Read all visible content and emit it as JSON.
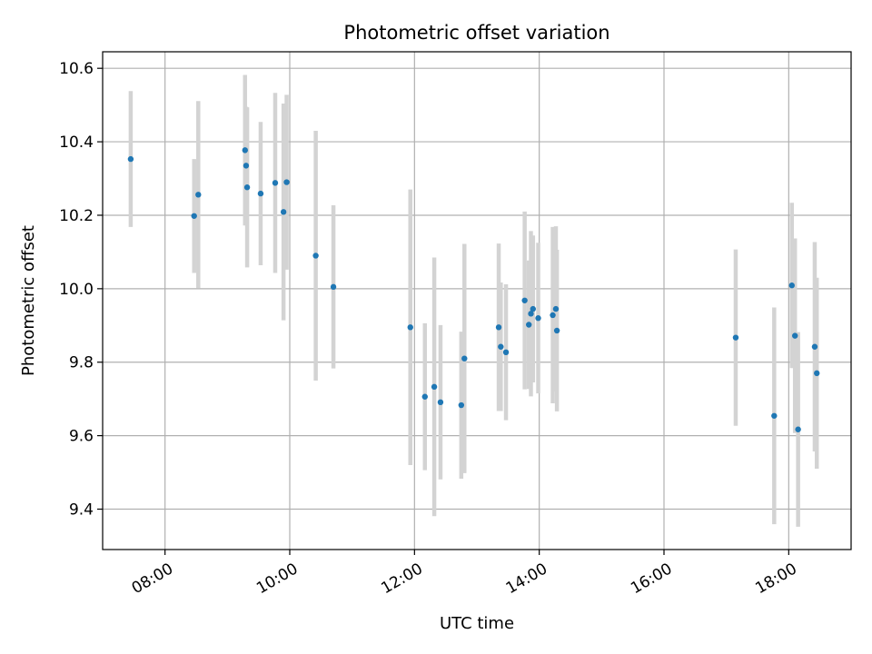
{
  "chart_data": {
    "type": "scatter",
    "title": "Photometric offset variation",
    "xlabel": "UTC time",
    "ylabel": "Photometric offset",
    "x_unit": "hours",
    "xlim": [
      "07:00",
      "19:00"
    ],
    "ylim": [
      9.29,
      10.645
    ],
    "grid": true,
    "legend": "none",
    "xticks": [
      "08:00",
      "10:00",
      "12:00",
      "14:00",
      "16:00",
      "18:00"
    ],
    "yticks": [
      "9.4",
      "9.6",
      "9.8",
      "10.0",
      "10.2",
      "10.4",
      "10.6"
    ],
    "colors": {
      "points": "#1f77b4",
      "error_bars": "#d3d3d3",
      "grid": "#b0b0b0"
    },
    "series": [
      {
        "points": [
          {
            "time": "07:27",
            "y": 10.353,
            "err": 0.185
          },
          {
            "time": "08:28",
            "y": 10.198,
            "err": 0.155
          },
          {
            "time": "08:32",
            "y": 10.256,
            "err": 0.255
          },
          {
            "time": "09:17",
            "y": 10.377,
            "err": 0.205
          },
          {
            "time": "09:18",
            "y": 10.335,
            "err": 0.16
          },
          {
            "time": "09:19",
            "y": 10.276,
            "err": 0.218
          },
          {
            "time": "09:32",
            "y": 10.259,
            "err": 0.195
          },
          {
            "time": "09:46",
            "y": 10.288,
            "err": 0.245
          },
          {
            "time": "09:54",
            "y": 10.209,
            "err": 0.295
          },
          {
            "time": "09:57",
            "y": 10.29,
            "err": 0.238
          },
          {
            "time": "10:25",
            "y": 10.09,
            "err": 0.34
          },
          {
            "time": "10:42",
            "y": 10.005,
            "err": 0.222
          },
          {
            "time": "11:56",
            "y": 9.895,
            "err": 0.375
          },
          {
            "time": "12:10",
            "y": 9.706,
            "err": 0.2
          },
          {
            "time": "12:19",
            "y": 9.733,
            "err": 0.352
          },
          {
            "time": "12:25",
            "y": 9.691,
            "err": 0.21
          },
          {
            "time": "12:45",
            "y": 9.683,
            "err": 0.2
          },
          {
            "time": "12:48",
            "y": 9.81,
            "err": 0.312
          },
          {
            "time": "13:21",
            "y": 9.895,
            "err": 0.228
          },
          {
            "time": "13:23",
            "y": 9.842,
            "err": 0.175
          },
          {
            "time": "13:28",
            "y": 9.827,
            "err": 0.185
          },
          {
            "time": "13:46",
            "y": 9.968,
            "err": 0.242
          },
          {
            "time": "13:50",
            "y": 9.902,
            "err": 0.175
          },
          {
            "time": "13:52",
            "y": 9.932,
            "err": 0.225
          },
          {
            "time": "13:54",
            "y": 9.945,
            "err": 0.2
          },
          {
            "time": "13:59",
            "y": 9.92,
            "err": 0.205
          },
          {
            "time": "14:13",
            "y": 9.928,
            "err": 0.24
          },
          {
            "time": "14:16",
            "y": 9.945,
            "err": 0.225
          },
          {
            "time": "14:17",
            "y": 9.886,
            "err": 0.22
          },
          {
            "time": "17:09",
            "y": 9.867,
            "err": 0.24
          },
          {
            "time": "17:46",
            "y": 9.654,
            "err": 0.295
          },
          {
            "time": "18:03",
            "y": 10.009,
            "err": 0.225
          },
          {
            "time": "18:06",
            "y": 9.872,
            "err": 0.265
          },
          {
            "time": "18:09",
            "y": 9.617,
            "err": 0.265
          },
          {
            "time": "18:25",
            "y": 9.842,
            "err": 0.285
          },
          {
            "time": "18:27",
            "y": 9.77,
            "err": 0.26
          }
        ]
      }
    ]
  }
}
